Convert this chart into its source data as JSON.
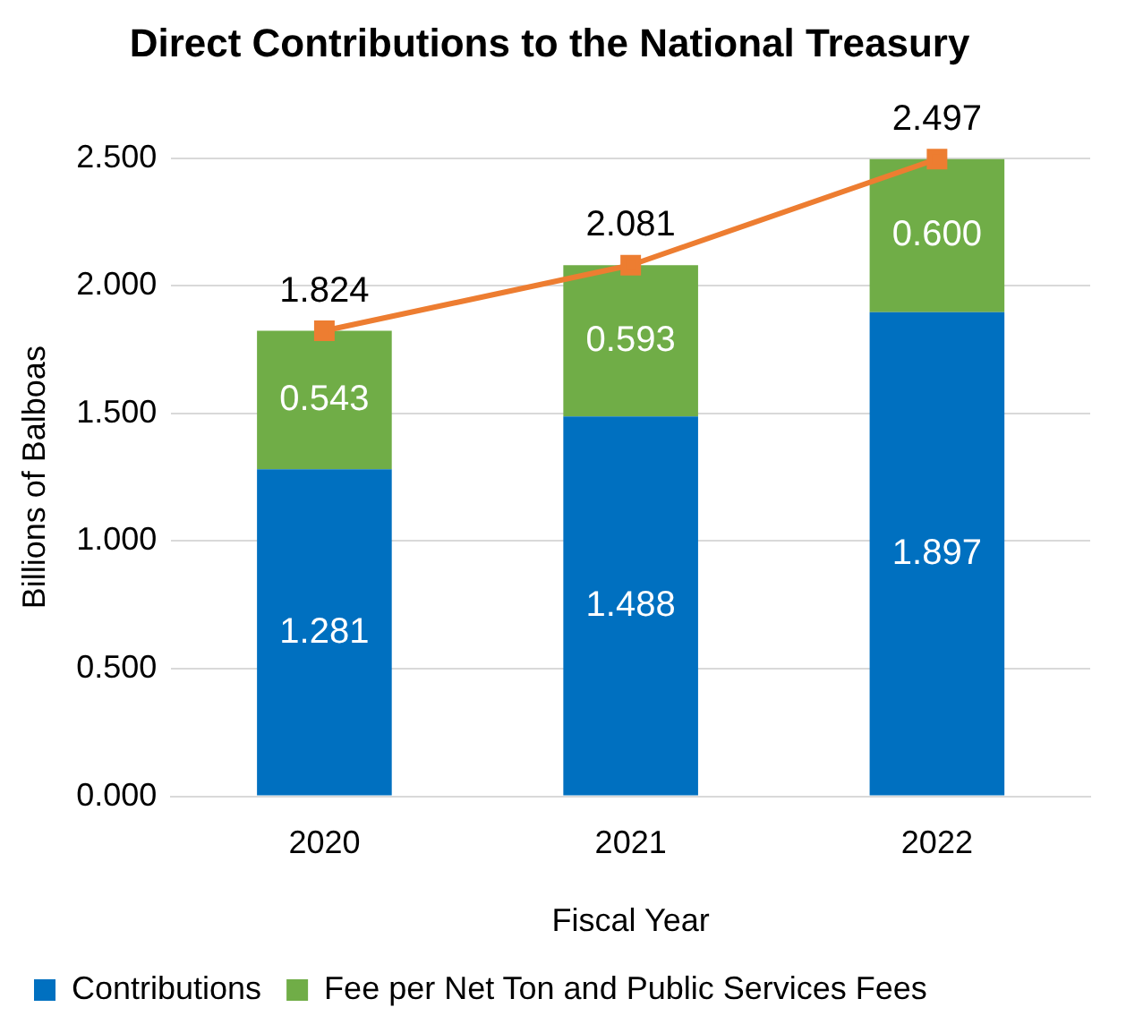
{
  "chart_data": {
    "type": "bar",
    "title": "Direct Contributions to the National Treasury",
    "xlabel": "Fiscal Year",
    "ylabel": "Billions of Balboas",
    "categories": [
      "2020",
      "2021",
      "2022"
    ],
    "stacked": true,
    "series": [
      {
        "name": "Contributions",
        "color": "#0070c0",
        "values": [
          1.281,
          1.488,
          1.897
        ],
        "value_labels": [
          "1.281",
          "1.488",
          "1.897"
        ]
      },
      {
        "name": "Fee per Net Ton and Public Services Fees",
        "color": "#70ad47",
        "values": [
          0.543,
          0.593,
          0.6
        ],
        "value_labels": [
          "0.543",
          "0.593",
          "0.600"
        ]
      },
      {
        "type": "line",
        "color": "#ed7d31",
        "marker": "square",
        "values": [
          1.824,
          2.081,
          2.497
        ],
        "value_labels": [
          "1.824",
          "2.081",
          "2.497"
        ]
      }
    ],
    "ylim": [
      0,
      2.5
    ],
    "yticks": [
      {
        "value": 0,
        "label": "0.000"
      },
      {
        "value": 0.5,
        "label": "0.500"
      },
      {
        "value": 1,
        "label": "1.000"
      },
      {
        "value": 1.5,
        "label": "1.500"
      },
      {
        "value": 2,
        "label": "2.000"
      },
      {
        "value": 2.5,
        "label": "2.500"
      }
    ],
    "grid": "y",
    "legend": "bottom"
  }
}
